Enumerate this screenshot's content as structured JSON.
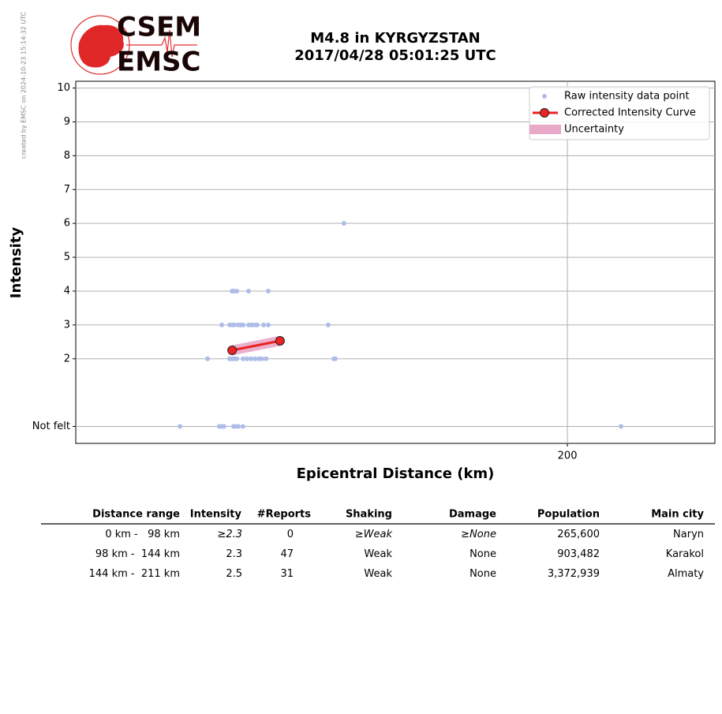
{
  "created_note": "created by EMSC on 2024-10-23 15:14:32 UTC",
  "logo": {
    "top": "CSEM",
    "bottom": "EMSC"
  },
  "chart_data": {
    "type": "scatter",
    "title": "M4.8 in KYRGYZSTAN",
    "subtitle": "2017/04/28 05:01:25 UTC",
    "x_label": "Epicentral Distance (km)",
    "y_label": "Intensity",
    "xlim": [
      0,
      260
    ],
    "xticks": [
      200
    ],
    "ylim": [
      -0.5,
      10.2
    ],
    "yticks": [
      {
        "value": 0,
        "label": "Not felt"
      },
      2,
      3,
      4,
      5,
      6,
      7,
      8,
      9,
      10
    ],
    "grid": true,
    "legend": "upper right",
    "series": [
      {
        "name": "Raw intensity data point",
        "color": "#aebde8",
        "x": [
          109.1,
          63.6,
          64.2,
          65.5,
          70.3,
          78.3,
          59.4,
          62.6,
          63.6,
          64.5,
          66.1,
          67.1,
          68.1,
          70.3,
          71.3,
          71.9,
          73.2,
          73.8,
          76.4,
          78.3,
          102.7,
          53.6,
          62.6,
          63.6,
          64.5,
          65.5,
          68.1,
          69.7,
          71.3,
          72.9,
          74.5,
          75.7,
          77.4,
          105.0,
          105.6,
          42.4,
          58.4,
          59.4,
          60.3,
          64.2,
          64.8,
          66.1,
          68.0,
          221.8
        ],
        "values": [
          6,
          4,
          4,
          4,
          4,
          4,
          3,
          3,
          3,
          3,
          3,
          3,
          3,
          3,
          3,
          3,
          3,
          3,
          3,
          3,
          3,
          2,
          2,
          2,
          2,
          2,
          2,
          2,
          2,
          2,
          2,
          2,
          2,
          2,
          2,
          0,
          0,
          0,
          0,
          0,
          0,
          0,
          0,
          0
        ]
      },
      {
        "name": "Corrected Intensity Curve",
        "color": "#ee2222",
        "marker_edge": "#222222",
        "x": [
          63.6,
          83.1
        ],
        "values": [
          2.25,
          2.53
        ]
      },
      {
        "name": "Uncertainty",
        "color": "#e8a8c8",
        "x": [
          63.6,
          83.1
        ],
        "lower": [
          2.1,
          2.38
        ],
        "upper": [
          2.4,
          2.68
        ]
      }
    ]
  },
  "table": {
    "header": [
      "Distance range",
      "Intensity",
      "#Reports",
      "Shaking",
      "Damage",
      "Population",
      "Main city"
    ],
    "rows": [
      [
        {
          "text": "0 km -   98 km"
        },
        {
          "prefix": "≥",
          "text": "2.3"
        },
        {
          "text": "0"
        },
        {
          "prefix": "≥",
          "text": "Weak"
        },
        {
          "prefix": "≥",
          "text": "None"
        },
        {
          "text": "265,600"
        },
        {
          "text": "Naryn"
        }
      ],
      [
        {
          "text": "98 km -  144 km"
        },
        {
          "text": "2.3"
        },
        {
          "text": "47"
        },
        {
          "text": "Weak"
        },
        {
          "text": "None"
        },
        {
          "text": "903,482"
        },
        {
          "text": "Karakol"
        }
      ],
      [
        {
          "text": "144 km -  211 km"
        },
        {
          "text": "2.5"
        },
        {
          "text": "31"
        },
        {
          "text": "Weak"
        },
        {
          "text": "None"
        },
        {
          "text": "3,372,939"
        },
        {
          "text": "Almaty"
        }
      ]
    ]
  }
}
